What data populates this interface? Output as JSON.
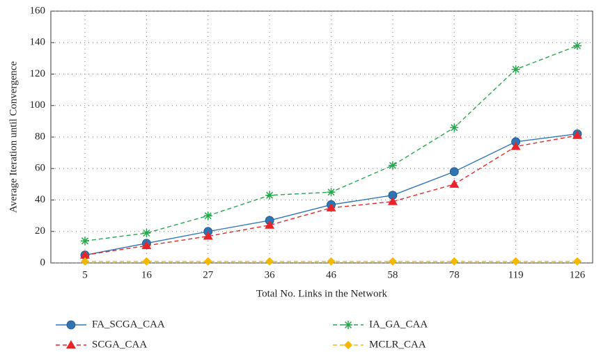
{
  "chart_data": {
    "type": "line",
    "x_label": "Total No. Links in the Network",
    "y_label": "Average Iteration until Convergence",
    "categories": [
      "5",
      "16",
      "27",
      "36",
      "46",
      "58",
      "78",
      "119",
      "126"
    ],
    "ylim": [
      0,
      160
    ],
    "yticks": [
      0,
      20,
      40,
      60,
      80,
      100,
      120,
      140,
      160
    ],
    "grid": true,
    "series": [
      {
        "name": "FA_SCGA_CAA",
        "color": "#2e75b6",
        "marker": "circle",
        "dashed": false,
        "values": [
          5,
          12.5,
          20,
          27,
          37,
          43,
          58,
          77,
          82
        ]
      },
      {
        "name": "SCGA_CAA",
        "color": "#e8262a",
        "marker": "triangle",
        "dashed": true,
        "values": [
          5,
          11,
          17,
          24,
          35,
          39,
          50,
          74,
          81
        ]
      },
      {
        "name": "IA_GA_CAA",
        "color": "#22a84a",
        "marker": "asterisk",
        "dashed": true,
        "values": [
          14,
          19,
          30,
          43,
          45,
          62,
          86,
          123,
          138
        ]
      },
      {
        "name": "MCLR_CAA",
        "color": "#f5b800",
        "marker": "diamond",
        "dashed": true,
        "values": [
          1,
          1,
          1,
          1,
          1,
          1,
          1,
          1,
          1
        ]
      }
    ]
  }
}
